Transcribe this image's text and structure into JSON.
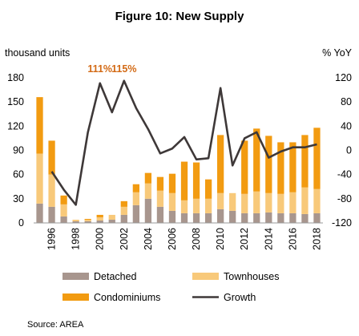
{
  "chart_data": {
    "type": "bar",
    "subtype": "stacked bar with line on secondary axis",
    "title": "Figure 10: New Supply",
    "left_unit": "thousand units",
    "right_unit": "% YoY",
    "source": "Source: AREA",
    "years": [
      1995,
      1996,
      1997,
      1998,
      1999,
      2000,
      2001,
      2002,
      2003,
      2004,
      2005,
      2006,
      2007,
      2008,
      2009,
      2010,
      2011,
      2012,
      2013,
      2014,
      2015,
      2016,
      2017,
      2018
    ],
    "x_tick_labels": [
      "1996",
      "1998",
      "2000",
      "2002",
      "2004",
      "2006",
      "2008",
      "2010",
      "2012",
      "2014",
      "2016",
      "2018"
    ],
    "x_tick_years": [
      1996,
      1998,
      2000,
      2002,
      2004,
      2006,
      2008,
      2010,
      2012,
      2014,
      2016,
      2018
    ],
    "ylim_left": [
      0,
      180
    ],
    "yticks_left": [
      "0",
      "30",
      "60",
      "90",
      "120",
      "150",
      "180"
    ],
    "yticks_left_values": [
      0,
      30,
      60,
      90,
      120,
      150,
      180
    ],
    "ylim_right": [
      -120,
      120
    ],
    "yticks_right": [
      "-120",
      "-80",
      "-40",
      "0",
      "40",
      "80",
      "120"
    ],
    "yticks_right_values": [
      -120,
      -80,
      -40,
      0,
      40,
      80,
      120
    ],
    "grid": false,
    "legend_position": "bottom",
    "series": [
      {
        "name": "Detached",
        "axis": "left",
        "kind": "bar",
        "color": "#a8968e",
        "values": [
          24,
          20,
          8,
          2,
          2,
          3,
          4,
          10,
          22,
          30,
          20,
          15,
          12,
          12,
          12,
          17,
          15,
          12,
          12,
          13,
          12,
          12,
          11,
          12
        ]
      },
      {
        "name": "Townhouses",
        "axis": "left",
        "kind": "bar",
        "color": "#f8c97a",
        "values": [
          62,
          40,
          15,
          2,
          2,
          4,
          6,
          10,
          16,
          19,
          20,
          22,
          16,
          18,
          18,
          20,
          22,
          24,
          27,
          24,
          24,
          26,
          33,
          30
        ]
      },
      {
        "name": "Condominiums",
        "axis": "left",
        "kind": "bar",
        "color": "#f29b11",
        "values": [
          70,
          42,
          11,
          0,
          1,
          3,
          0,
          7,
          10,
          13,
          17,
          24,
          48,
          45,
          24,
          72,
          0,
          66,
          78,
          71,
          64,
          62,
          65,
          76
        ]
      },
      {
        "name": "Growth",
        "axis": "right",
        "kind": "line",
        "color": "#3e3838",
        "values": [
          null,
          -35,
          -65,
          -90,
          30,
          111,
          63,
          115,
          70,
          35,
          -5,
          3,
          22,
          -15,
          -13,
          103,
          -25,
          20,
          30,
          -12,
          -2,
          5,
          5,
          10
        ]
      }
    ],
    "annotations": [
      {
        "text": "111%",
        "year": 2000,
        "color": "#d36a15"
      },
      {
        "text": "115%",
        "year": 2002,
        "color": "#d36a15"
      }
    ]
  }
}
